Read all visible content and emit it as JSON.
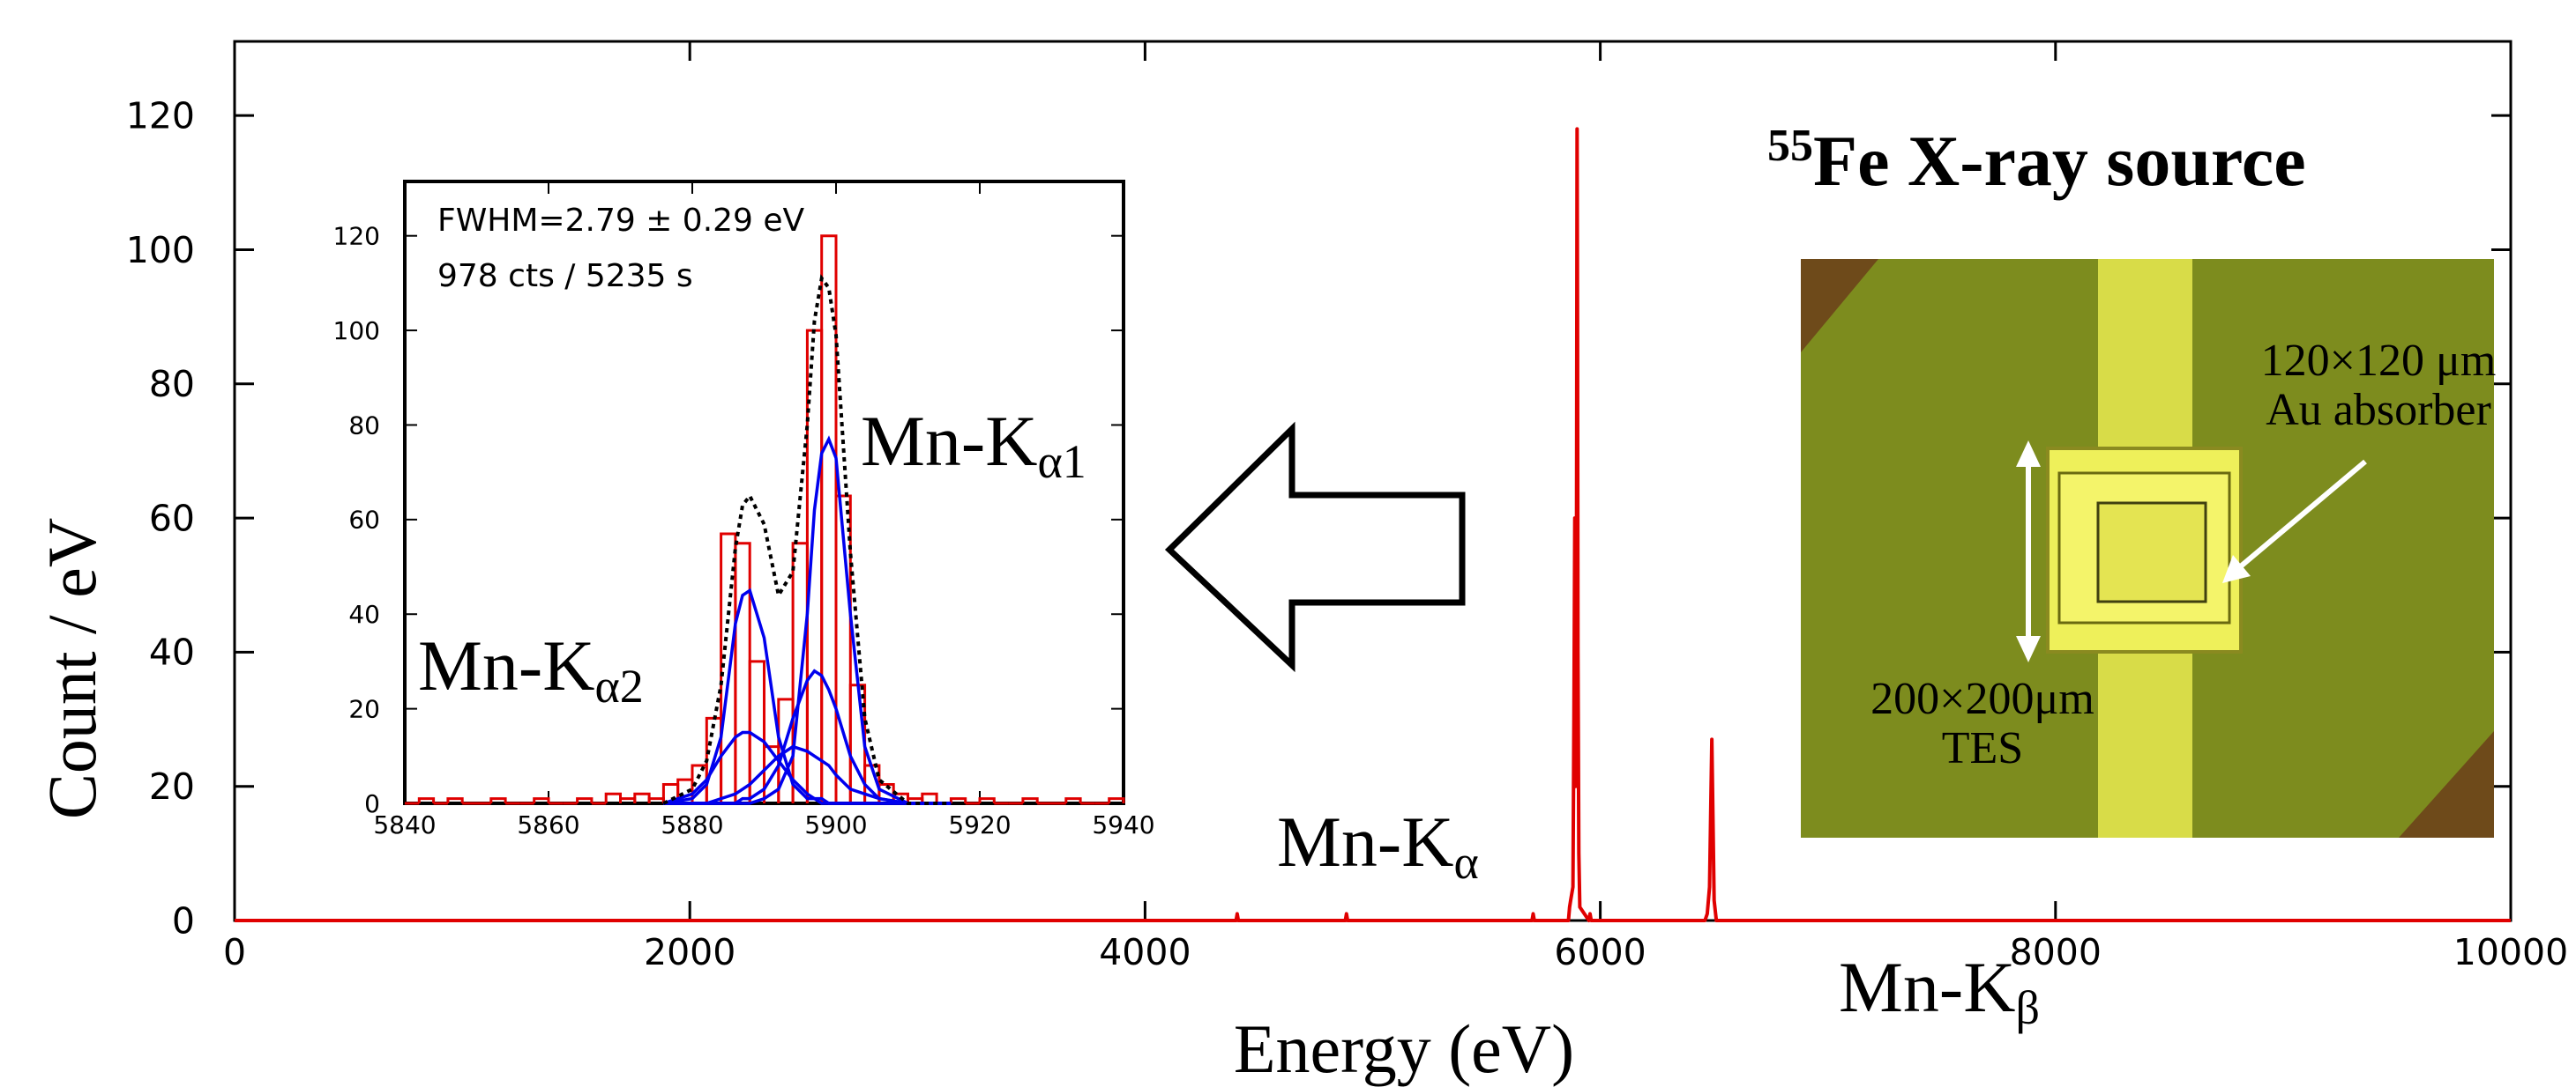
{
  "chart_data": [
    {
      "type": "line",
      "x_label": "Energy (eV)",
      "y_label": "Count / eV",
      "x": [
        0,
        4400,
        4405,
        4410,
        4880,
        4885,
        4890,
        5700,
        5705,
        5710,
        5860,
        5865,
        5870,
        5880,
        5884,
        5888,
        5892,
        5895,
        5898,
        5900,
        5902,
        5906,
        5910,
        5950,
        5955,
        5960,
        6460,
        6470,
        6480,
        6490,
        6495,
        6500,
        6510,
        10000
      ],
      "series": [
        {
          "color": "#e00000",
          "values": [
            0,
            0,
            1,
            0,
            0,
            1,
            0,
            0,
            1,
            0,
            0,
            2,
            3,
            5,
            30,
            60,
            20,
            40,
            118,
            90,
            40,
            10,
            2,
            0,
            1,
            0,
            0,
            1,
            5,
            27,
            15,
            3,
            0,
            0
          ]
        }
      ],
      "xlim": [
        0,
        10000
      ],
      "ylim": [
        0,
        130
      ],
      "xticks": [
        0,
        2000,
        4000,
        6000,
        8000,
        10000
      ],
      "yticks": [
        0,
        20,
        40,
        60,
        80,
        100,
        120
      ]
    },
    {
      "type": "histogram",
      "bins": [
        5840,
        5842,
        5844,
        5846,
        5848,
        5850,
        5852,
        5854,
        5856,
        5858,
        5860,
        5862,
        5864,
        5866,
        5868,
        5870,
        5872,
        5874,
        5876,
        5878,
        5880,
        5882,
        5884,
        5886,
        5888,
        5890,
        5892,
        5894,
        5896,
        5898,
        5900,
        5902,
        5904,
        5906,
        5908,
        5910,
        5912,
        5914,
        5916,
        5918,
        5920,
        5922,
        5924,
        5926,
        5928,
        5930,
        5932,
        5934,
        5936,
        5938,
        5940
      ],
      "counts": [
        0,
        1,
        0,
        1,
        0,
        0,
        1,
        0,
        0,
        1,
        0,
        0,
        1,
        0,
        2,
        1,
        2,
        1,
        4,
        5,
        8,
        18,
        57,
        55,
        30,
        12,
        22,
        55,
        100,
        120,
        65,
        25,
        8,
        4,
        2,
        1,
        2,
        0,
        1,
        0,
        1,
        0,
        0,
        1,
        0,
        0,
        1,
        0,
        0,
        1
      ],
      "color": "#e00000",
      "fit": {
        "x": [
          5876,
          5880,
          5882,
          5884,
          5886,
          5887,
          5888,
          5890,
          5892,
          5894,
          5896,
          5897,
          5898,
          5899,
          5900,
          5902,
          5904,
          5906,
          5910,
          5916
        ],
        "total": {
          "color": "#000000",
          "values": [
            0,
            3,
            9,
            25,
            54,
            63,
            65,
            59,
            44,
            49,
            80,
            102,
            111,
            109,
            99,
            53,
            18,
            5,
            0,
            0
          ]
        },
        "components": [
          {
            "color": "#0000ee",
            "values": [
              0,
              0,
              0,
              0,
              0,
              0,
              0,
              1,
              3,
              10,
              40,
              62,
              74,
              77,
              73,
              40,
              12,
              3,
              0,
              0
            ]
          },
          {
            "color": "#0000ee",
            "values": [
              0,
              0,
              0,
              0,
              0,
              1,
              1,
              3,
              8,
              18,
              26,
              28,
              27,
              24,
              20,
              10,
              4,
              1,
              0,
              0
            ]
          },
          {
            "color": "#0000ee",
            "values": [
              0,
              0,
              0,
              1,
              2,
              3,
              4,
              7,
              10,
              12,
              11,
              10,
              9,
              8,
              6,
              3,
              2,
              1,
              0,
              0
            ]
          },
          {
            "color": "#0000ee",
            "values": [
              0,
              1,
              4,
              14,
              38,
              44,
              45,
              35,
              14,
              4,
              1,
              1,
              0,
              0,
              0,
              0,
              0,
              0,
              0,
              0
            ]
          },
          {
            "color": "#0000ee",
            "values": [
              0,
              2,
              5,
              10,
              14,
              15,
              15,
              13,
              9,
              5,
              2,
              1,
              1,
              0,
              0,
              0,
              0,
              0,
              0,
              0
            ]
          }
        ]
      },
      "xlim": [
        5840,
        5940
      ],
      "ylim": [
        0,
        130
      ],
      "xticks": [
        5840,
        5860,
        5880,
        5900,
        5920,
        5940
      ],
      "yticks": [
        0,
        20,
        40,
        60,
        80,
        100,
        120
      ],
      "annotations": [
        "FWHM=2.79 ± 0.29 eV",
        "978 cts / 5235 s"
      ]
    }
  ],
  "labels": {
    "ka1": {
      "base": "Mn-K",
      "sub": "α1"
    },
    "ka2": {
      "base": "Mn-K",
      "sub": "α2"
    },
    "ka": {
      "base": "Mn-K",
      "sub": "α"
    },
    "kb": {
      "base": "Mn-K",
      "sub": "β"
    },
    "source": {
      "sup": "55",
      "text": "Fe X-ray source"
    }
  },
  "photo": {
    "absorber_size": "120×120 μm",
    "absorber": "Au absorber",
    "tes_size": "200×200μm",
    "tes": "TES"
  }
}
